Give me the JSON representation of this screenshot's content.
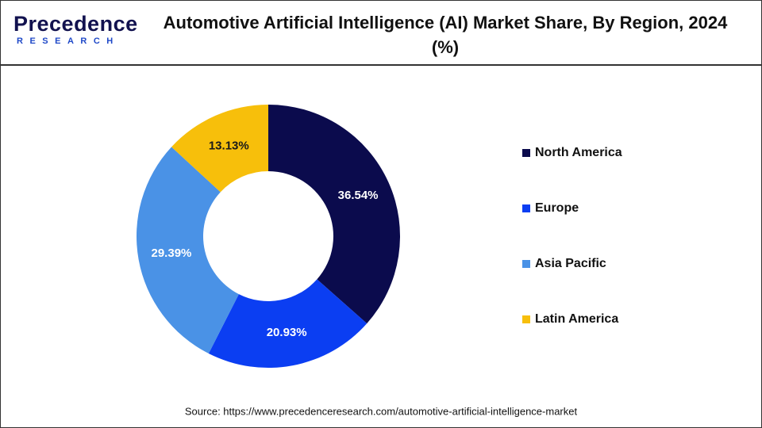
{
  "logo": {
    "name": "Precedence",
    "tagline": "RESEARCH"
  },
  "chart_data": {
    "type": "donut",
    "title": "Automotive Artificial Intelligence (AI) Market Share, By Region, 2024 (%)",
    "categories": [
      "North America",
      "Europe",
      "Asia Pacific",
      "Latin America"
    ],
    "values": [
      36.54,
      20.93,
      29.39,
      13.13
    ],
    "value_labels": [
      "36.54%",
      "20.93%",
      "29.39%",
      "13.13%"
    ],
    "colors": [
      "#0b0b4d",
      "#0b3ef2",
      "#4a92e6",
      "#f7bf0b"
    ],
    "label_colors": [
      "#ffffff",
      "#ffffff",
      "#ffffff",
      "#1a1a1a"
    ],
    "legend": "right",
    "source": "Source: https://www.precedenceresearch.com/automotive-artificial-intelligence-market"
  }
}
